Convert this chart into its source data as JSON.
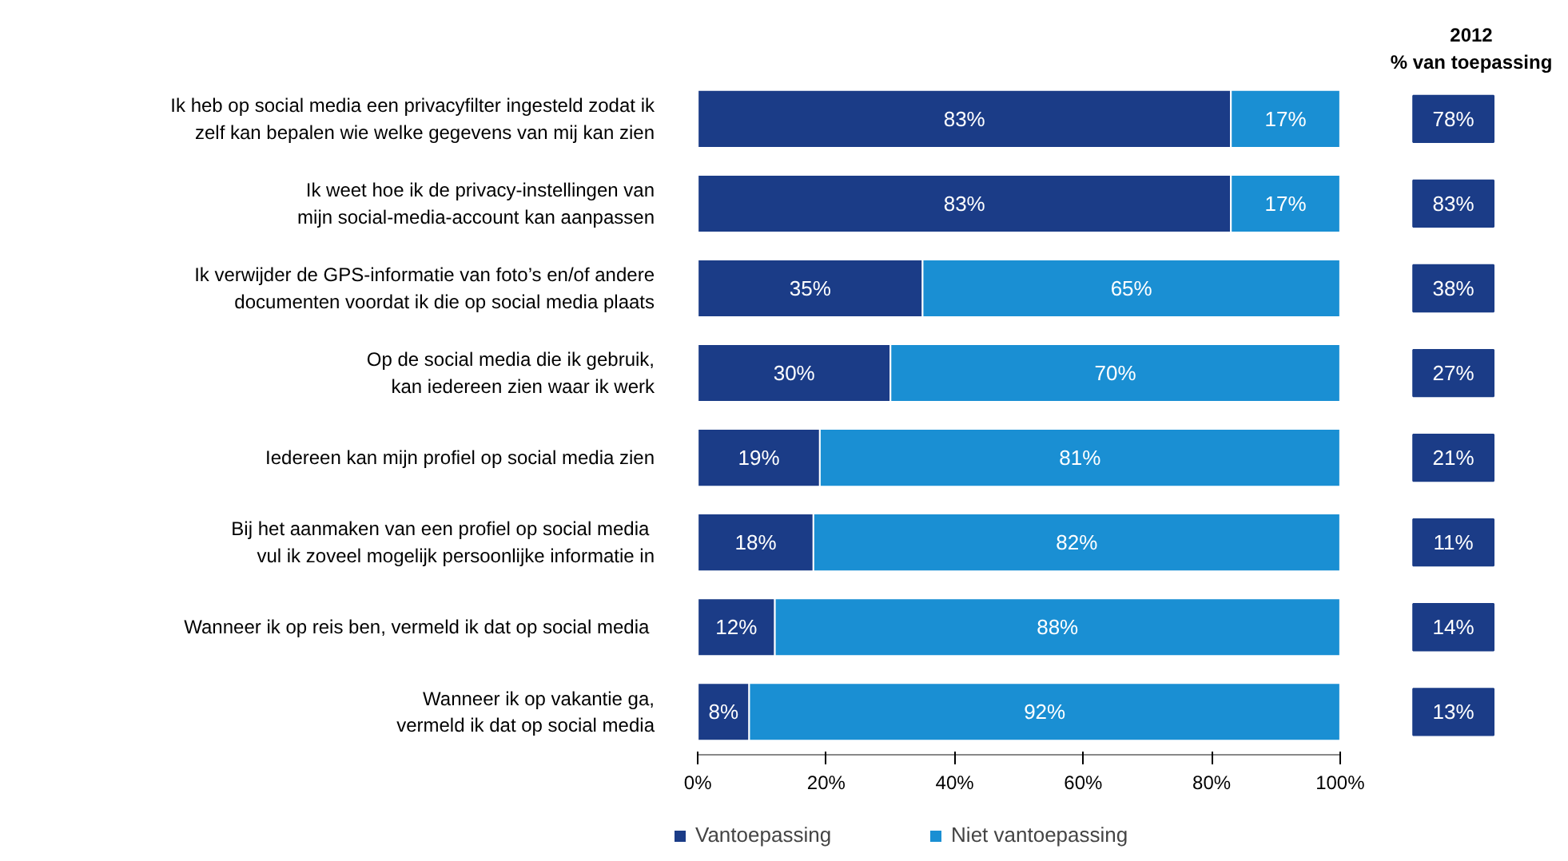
{
  "chart_data": [
    {
      "type": "bar",
      "orientation": "horizontal",
      "stacked": true,
      "categories": [
        "Ik heb op social media een privacyfilter ingesteld zodat ik\nzelf kan bepalen wie welke gegevens van mij kan zien",
        "Ik weet hoe ik de privacy-instellingen van\nmijn social-media-account kan aanpassen",
        "Ik verwijder de GPS-informatie van foto’s en/of andere\ndocumenten voordat ik die op social media plaats",
        "Op de social media die ik gebruik,\nkan iedereen zien waar ik werk",
        "Iedereen kan mijn profiel op social media zien",
        "Bij het aanmaken  van een profiel op social media\nvul ik zoveel mogelijk persoonlijke informatie in",
        "Wanneer  ik op reis ben, vermeld ik dat op social media",
        "Wanneer ik op vakantie ga,\nvermeld ik dat op social media"
      ],
      "series": [
        {
          "name": "Vantoepassing",
          "color": "#1b3c87",
          "values": [
            83,
            83,
            35,
            30,
            19,
            18,
            12,
            8
          ],
          "value_labels": [
            "83%",
            "83%",
            "35%",
            "30%",
            "19%",
            "18%",
            "12%",
            "8%"
          ]
        },
        {
          "name": "Niet vantoepassing",
          "color": "#1a8fd3",
          "values": [
            17,
            17,
            65,
            70,
            81,
            82,
            88,
            92
          ],
          "value_labels": [
            "17%",
            "17%",
            "65%",
            "70%",
            "81%",
            "82%",
            "88%",
            "92%"
          ]
        }
      ],
      "xlim": [
        0,
        100
      ],
      "xticks": [
        {
          "value": 0,
          "label": "0%"
        },
        {
          "value": 20,
          "label": "20%"
        },
        {
          "value": 40,
          "label": "40%"
        },
        {
          "value": 60,
          "label": "60%"
        },
        {
          "value": 80,
          "label": "80%"
        },
        {
          "value": 100,
          "label": "100%"
        }
      ],
      "grid": false,
      "legend": "bottom"
    },
    {
      "type": "other",
      "title": "2012\n% van toepassing",
      "color": "#1b3c87",
      "annotations": [
        "78%",
        "83%",
        "38%",
        "27%",
        "21%",
        "11%",
        "14%",
        "13%"
      ]
    }
  ]
}
